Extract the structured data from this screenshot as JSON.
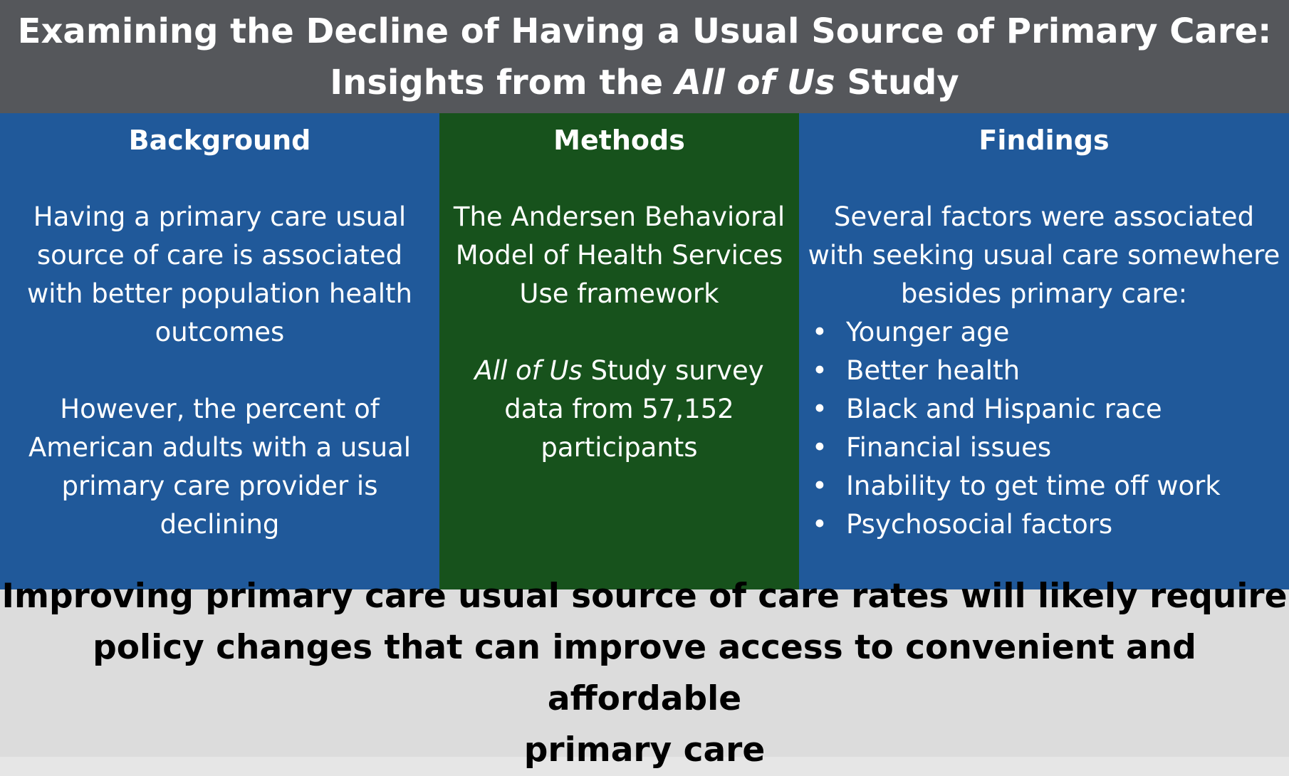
{
  "header": {
    "line1": "Examining the Decline of Having a Usual Source of Primary Care:",
    "line2_prefix": "Insights from the ",
    "line2_italic": "All of Us",
    "line2_suffix": " Study"
  },
  "background": {
    "title": "Background",
    "para1": [
      "Having a primary care usual",
      "source of care is associated",
      "with better population health",
      "outcomes"
    ],
    "para2": [
      "However, the percent of",
      "American adults with a usual",
      "primary care provider is",
      "declining"
    ]
  },
  "methods": {
    "title": "Methods",
    "para1": [
      "The Andersen Behavioral",
      "Model of Health Services",
      "Use framework"
    ],
    "para2_italic": "All of Us",
    "para2_line1_suffix": " Study survey",
    "para2_rest": [
      "data from 57,152",
      "participants"
    ]
  },
  "findings": {
    "title": "Findings",
    "intro": [
      "Several factors were associated",
      "with seeking usual care somewhere",
      "besides primary care:"
    ],
    "bullet_symbol": "•",
    "bullets": [
      "Younger age",
      "Better health",
      "Black and Hispanic race",
      "Financial issues",
      "Inability to get time off work",
      "Psychosocial factors"
    ]
  },
  "footer": {
    "lines": [
      "Improving primary care usual source of care rates will likely require",
      "policy changes that can improve access to convenient and affordable",
      "primary care"
    ]
  },
  "colors": {
    "header_bg": "#55575b",
    "blue_panel": "#20599a",
    "green_panel": "#17521c",
    "footer_bg": "#dcdcdc"
  }
}
